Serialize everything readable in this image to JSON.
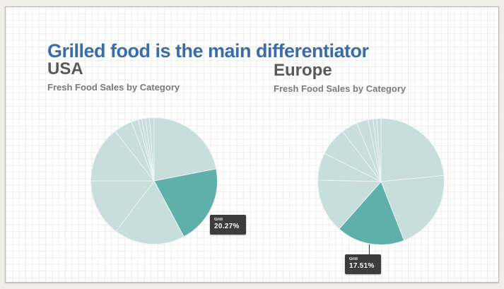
{
  "title": "Grilled food is the main differentiator",
  "colors": {
    "title_blue": "#3a6da8",
    "header_gray": "#595959",
    "subtitle_gray": "#7a7a7a",
    "pie_base_teal": "#c8dedd",
    "pie_highlight_teal": "#5fafab",
    "tooltip_bg": "#3c3c3c",
    "outer_bg": "#f1efe9",
    "grid_line": "#edecea"
  },
  "charts": [
    {
      "region": "USA",
      "subtitle": "Fresh Food Sales by Category",
      "tooltip": {
        "label": "Grill",
        "value": "20.27%"
      }
    },
    {
      "region": "Europe",
      "subtitle": "Fresh Food Sales by Category",
      "tooltip": {
        "label": "Grill",
        "value": "17.51%"
      }
    }
  ],
  "chart_data": [
    {
      "type": "pie",
      "title": "USA",
      "subtitle": "Fresh Food Sales by Category",
      "start_angle_deg": 0,
      "legend": "none",
      "annotation": "Grill 20.27% (highlighted slice, tooltip shown)",
      "colors": {
        "base": "#c8dedd",
        "highlight": "#5fafab",
        "divider": "#eef4f3"
      },
      "slices": [
        {
          "label": "",
          "pct": 21.94,
          "highlight": false
        },
        {
          "label": "Grill",
          "pct": 20.27,
          "highlight": true
        },
        {
          "label": "",
          "pct": 18.06,
          "highlight": false
        },
        {
          "label": "",
          "pct": 14.72,
          "highlight": false
        },
        {
          "label": "",
          "pct": 14.44,
          "highlight": false
        },
        {
          "label": "",
          "pct": 4.72,
          "highlight": false
        },
        {
          "label": "",
          "pct": 1.81,
          "highlight": false
        },
        {
          "label": "",
          "pct": 0.86,
          "highlight": false
        },
        {
          "label": "",
          "pct": 0.97,
          "highlight": false
        },
        {
          "label": "",
          "pct": 1.03,
          "highlight": false
        },
        {
          "label": "",
          "pct": 1.18,
          "highlight": false
        }
      ]
    },
    {
      "type": "pie",
      "title": "Europe",
      "subtitle": "Fresh Food Sales by Category",
      "start_angle_deg": 0,
      "legend": "none",
      "annotation": "Grill 17.51% (highlighted slice, tooltip with connector line shown)",
      "colors": {
        "base": "#c8dedd",
        "highlight": "#5fafab",
        "divider": "#eef4f3"
      },
      "slices": [
        {
          "label": "",
          "pct": 23.47,
          "highlight": false
        },
        {
          "label": "",
          "pct": 20.56,
          "highlight": false
        },
        {
          "label": "Grill",
          "pct": 17.51,
          "highlight": true
        },
        {
          "label": "",
          "pct": 13.83,
          "highlight": false
        },
        {
          "label": "",
          "pct": 7.0,
          "highlight": false
        },
        {
          "label": "",
          "pct": 7.22,
          "highlight": false
        },
        {
          "label": "",
          "pct": 4.14,
          "highlight": false
        },
        {
          "label": "",
          "pct": 2.97,
          "highlight": false
        },
        {
          "label": "",
          "pct": 1.28,
          "highlight": false
        },
        {
          "label": "",
          "pct": 0.94,
          "highlight": false
        },
        {
          "label": "",
          "pct": 1.08,
          "highlight": false
        }
      ]
    }
  ]
}
